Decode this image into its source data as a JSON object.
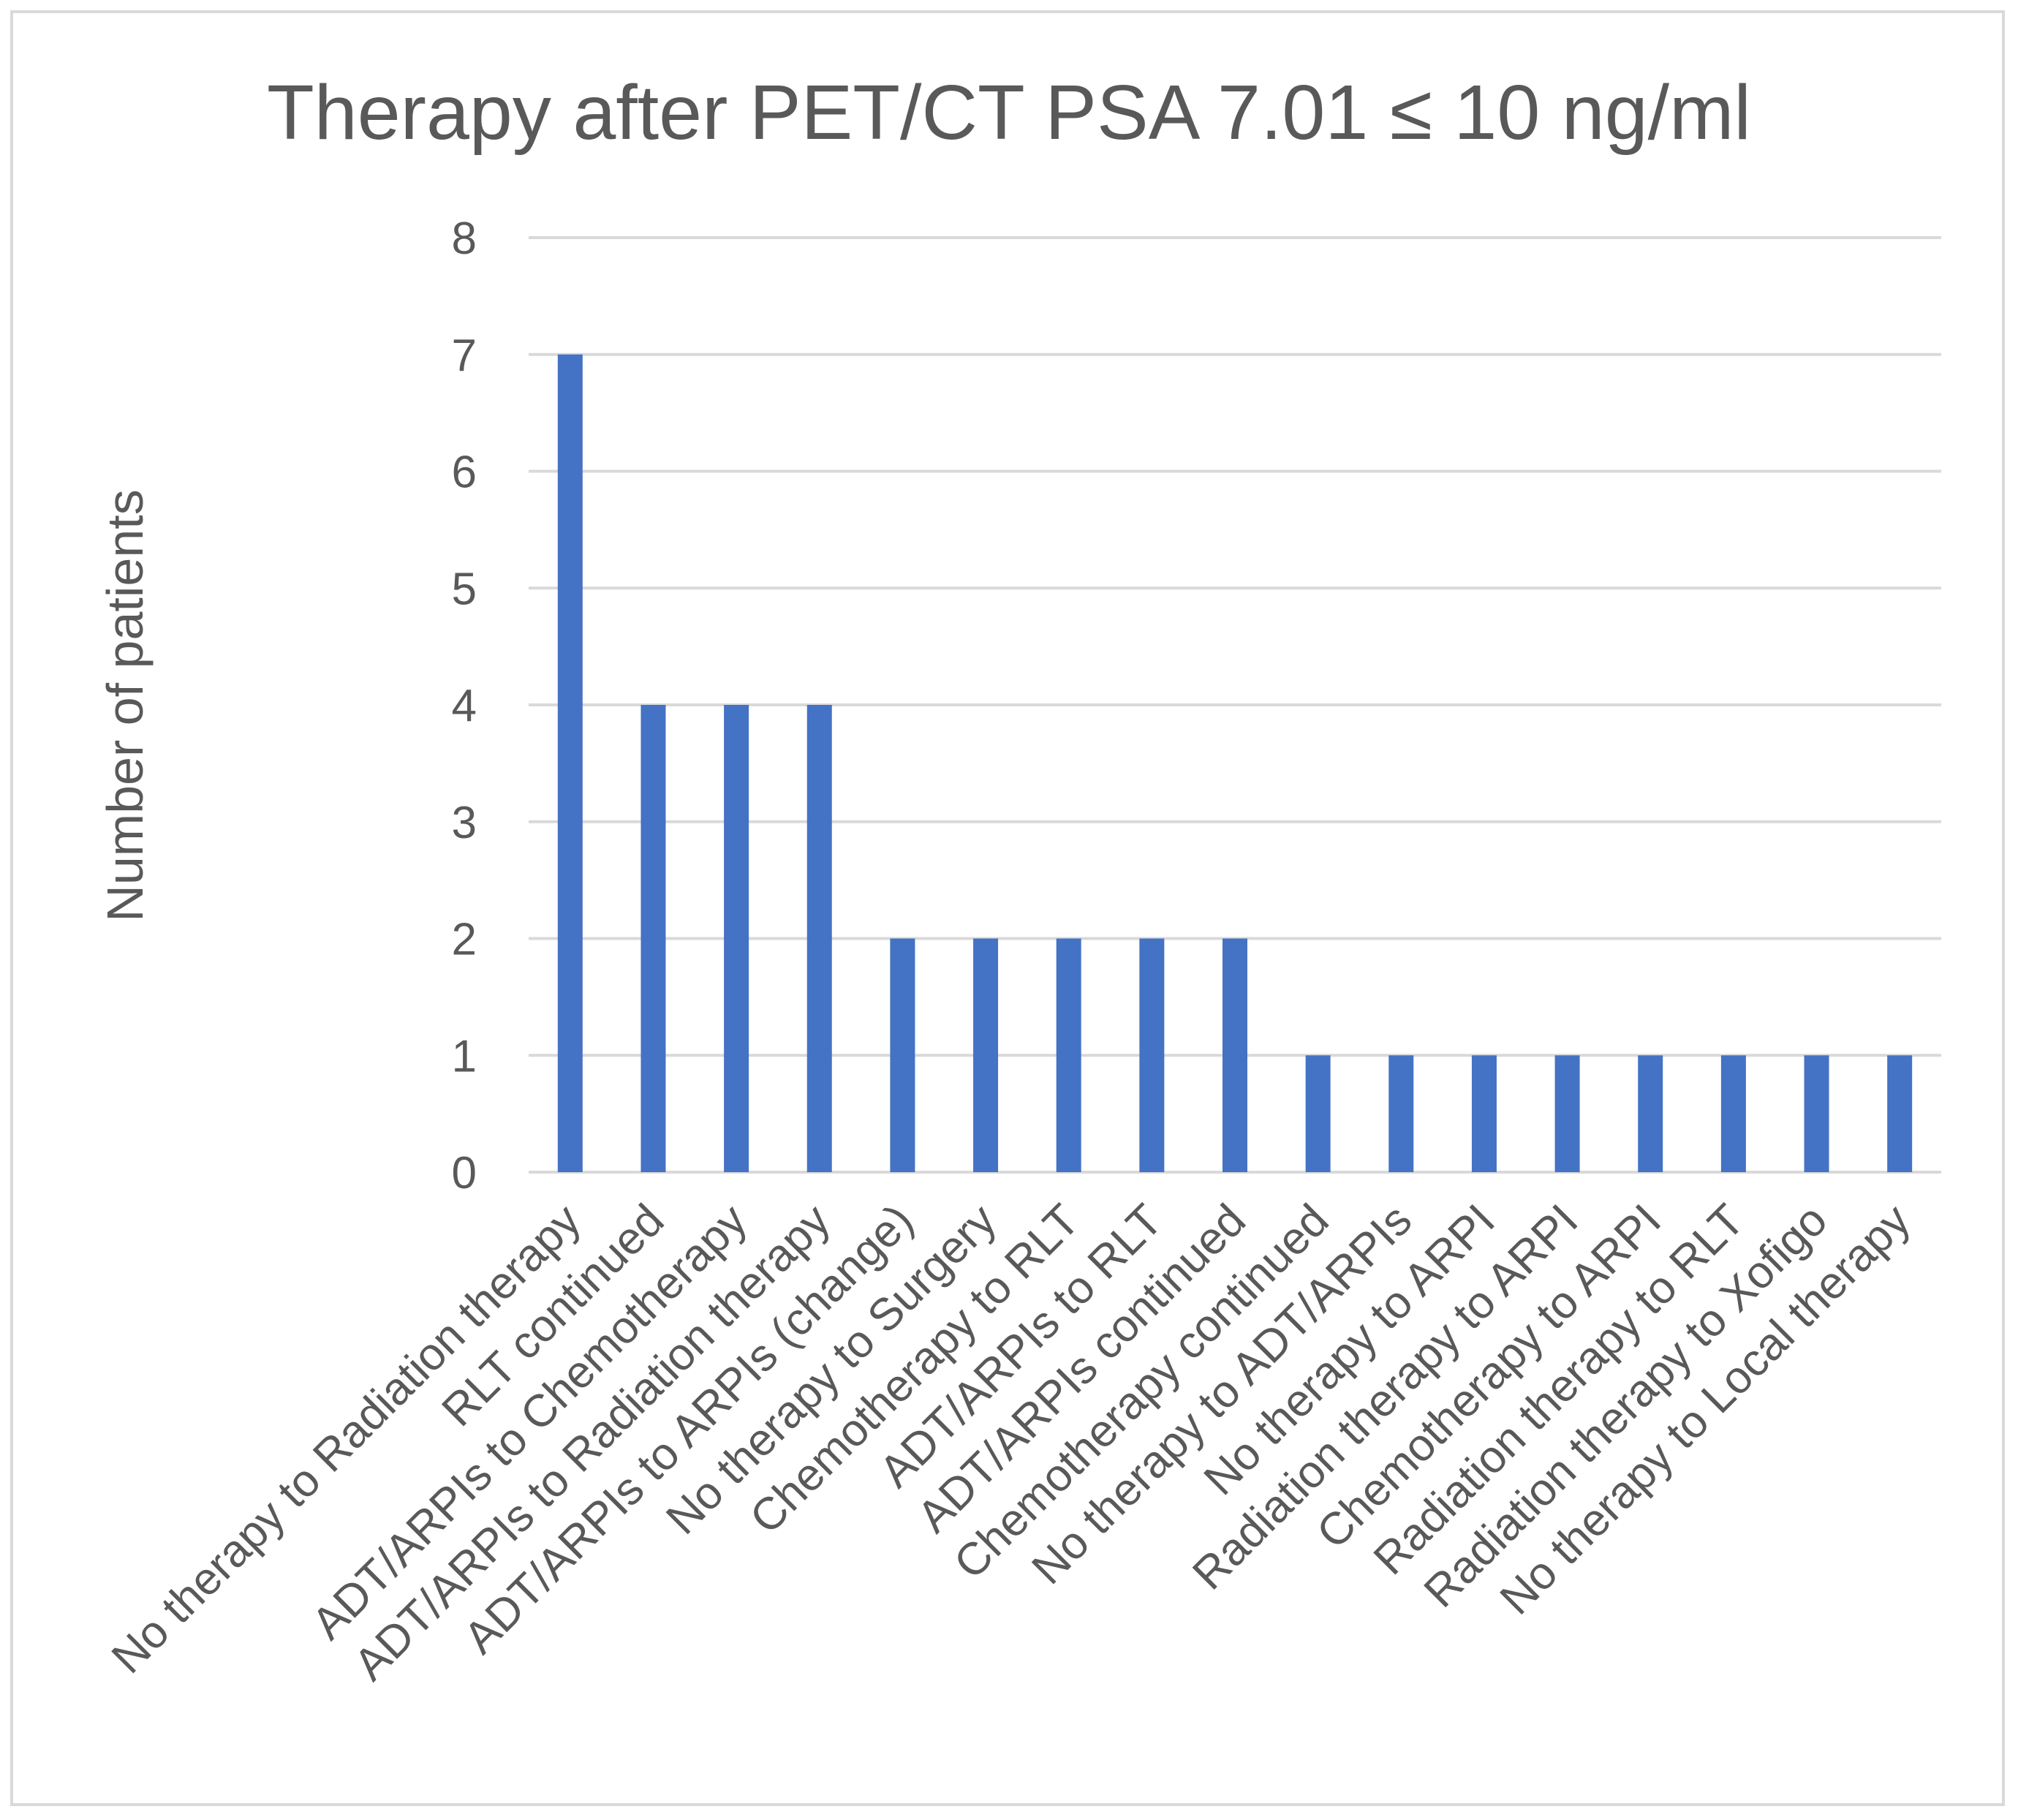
{
  "chart_data": {
    "type": "bar",
    "title": "Therapy after PET/CT PSA 7.01 ≤ 10 ng/ml",
    "xlabel": "",
    "ylabel": "Number of patients",
    "ylim": [
      0,
      8
    ],
    "yticks": [
      0,
      1,
      2,
      3,
      4,
      5,
      6,
      7,
      8
    ],
    "grid": true,
    "bar_color": "#4472c4",
    "categories": [
      "No therapy to Radiation therapy",
      "RLT continued",
      "ADT/ARPIs to Chemotherapy",
      "ADT/ARPIs to Radiation therapy",
      "ADT/ARPIs to ARPIs (change)",
      "No therapy to Surgery",
      "Chemotherapy to RLT",
      "ADT/ARPIs to RLT",
      "ADT/ARPIs continued",
      "Chemotherapy continued",
      "No therapy to ADT/ARPIs",
      "No therapy to ARPI",
      "Radiation therapy to ARPI",
      "Chemotherapy to ARPI",
      "Radiation therapy to RLT",
      "Radiation therapy to Xofigo",
      "No therapy to Local therapy"
    ],
    "values": [
      7,
      4,
      4,
      4,
      2,
      2,
      2,
      2,
      2,
      1,
      1,
      1,
      1,
      1,
      1,
      1,
      1
    ]
  }
}
